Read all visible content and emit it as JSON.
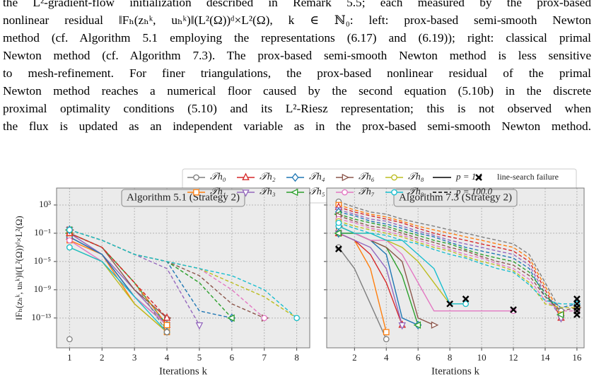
{
  "text": {
    "lines": [
      "the L²-gradient-flow initialization described in Remark 5.5; each measured by the prox-based",
      "nonlinear residual ‖Fₕ(zₕᵏ, uₕᵏ)‖(L²(Ω))ᵈ×L²(Ω), k ∈ ℕ₀: left: prox-based semi-smooth Newton",
      "method (cf. Algorithm 5.1 employing the representations (6.17) and (6.19)); right: classical primal",
      "Newton method (cf. Algorithm 7.3). The prox-based semi-smooth Newton method is less sensitive",
      "to mesh-refinement. For finer triangulations, the prox-based nonlinear residual of the primal",
      "Newton method reaches a numerical floor caused by the second equation (5.10b) in the discrete",
      "proximal optimality conditions (5.10) and its L²-Riesz representation; this is not observed when",
      "the flux is updated as an independent variable as in the prox-based semi-smooth Newton method."
    ]
  },
  "chart_data": [
    {
      "type": "line",
      "title": "Algorithm 5.1 (Strategy 2)",
      "xlabel": "Iterations k",
      "ylabel": "‖Fₕ(zₕᵏ, uₕᵏ)‖(L²(Ω))ᵈ×L²(Ω)",
      "yscale": "log",
      "grid": true,
      "xlim": [
        0.6,
        8.4
      ],
      "ylim": [
        6e-18,
        250000.0
      ],
      "xticks": [
        1,
        2,
        3,
        4,
        5,
        6,
        7,
        8
      ],
      "yticks": [
        {
          "value": 1000,
          "label": "10³"
        },
        {
          "value": 0.1,
          "label": "10⁻¹"
        },
        {
          "value": 1e-05,
          "label": "10⁻⁵"
        },
        {
          "value": 1e-09,
          "label": "10⁻⁹"
        },
        {
          "value": 1e-13,
          "label": "10⁻¹³"
        }
      ],
      "x": [
        1,
        2,
        3,
        4,
        5,
        6,
        7,
        8
      ],
      "series": [
        {
          "name": "𝒯h₀",
          "p": "p = 1.1",
          "line_style": "solid",
          "color": "#7f7f7f",
          "marker": "circle",
          "values": [
            1e-16,
            null,
            null,
            null,
            null,
            null,
            null,
            null
          ]
        },
        {
          "name": "𝒯h₁",
          "p": "p = 1.1",
          "line_style": "solid",
          "color": "#ff7f0e",
          "marker": "square",
          "values": [
            0.01,
            0.0001,
            1e-11,
            1e-15,
            null,
            null,
            null,
            null
          ]
        },
        {
          "name": "𝒯h₂",
          "p": "p = 1.1",
          "line_style": "solid",
          "color": "#d62728",
          "marker": "triangle-up",
          "values": [
            0.03,
            0.0001,
            1e-10,
            1e-14,
            null,
            null,
            null,
            null
          ]
        },
        {
          "name": "𝒯h₃",
          "p": "p = 1.1",
          "line_style": "solid",
          "color": "#9467bd",
          "marker": "triangle-down",
          "values": [
            0.1,
            0.0001,
            1e-09,
            1e-14,
            null,
            null,
            null,
            null
          ]
        },
        {
          "name": "𝒯h₄",
          "p": "p = 1.1",
          "line_style": "solid",
          "color": "#1f77b4",
          "marker": "diamond",
          "values": [
            0.03,
            0.0001,
            1e-10,
            1e-14,
            null,
            null,
            null,
            null
          ]
        },
        {
          "name": "𝒯h₅",
          "p": "p = 1.1",
          "line_style": "solid",
          "color": "#2ca02c",
          "marker": "triangle-left",
          "values": [
            0.1,
            0.001,
            1e-08,
            1e-14,
            null,
            null,
            null,
            null
          ]
        },
        {
          "name": "𝒯h₆",
          "p": "p = 1.1",
          "line_style": "solid",
          "color": "#8c564b",
          "marker": "triangle-right",
          "values": [
            0.1,
            0.001,
            1e-09,
            1e-13,
            null,
            null,
            null,
            null
          ]
        },
        {
          "name": "𝒯h₇",
          "p": "p = 1.1",
          "line_style": "solid",
          "color": "#e377c2",
          "marker": "circle",
          "values": [
            0.01,
            1e-05,
            1e-10,
            1e-14,
            null,
            null,
            null,
            null
          ]
        },
        {
          "name": "𝒯h₈",
          "p": "p = 1.1",
          "line_style": "solid",
          "color": "#bcbd22",
          "marker": "circle",
          "values": [
            0.001,
            1e-05,
            1e-11,
            1e-15,
            null,
            null,
            null,
            null
          ]
        },
        {
          "name": "𝒯h₉",
          "p": "p = 1.1",
          "line_style": "solid",
          "color": "#17becf",
          "marker": "circle",
          "values": [
            0.001,
            1e-05,
            1e-10,
            1e-15,
            null,
            null,
            null,
            null
          ]
        },
        {
          "name": "𝒯h₀",
          "p": "p = 100.0",
          "line_style": "dashed",
          "color": "#7f7f7f",
          "marker": "circle",
          "values": [
            0.1,
            0.001,
            1e-08,
            1e-15,
            null,
            null,
            null,
            null
          ]
        },
        {
          "name": "𝒯h₁",
          "p": "p = 100.0",
          "line_style": "dashed",
          "color": "#ff7f0e",
          "marker": "square",
          "values": [
            0.1,
            0.001,
            1e-08,
            1e-14,
            null,
            null,
            null,
            null
          ]
        },
        {
          "name": "𝒯h₂",
          "p": "p = 100.0",
          "line_style": "dashed",
          "color": "#d62728",
          "marker": "triangle-up",
          "values": [
            0.1,
            0.001,
            1e-08,
            1e-13,
            null,
            null,
            null,
            null
          ]
        },
        {
          "name": "𝒯h₃",
          "p": "p = 100.0",
          "line_style": "dashed",
          "color": "#9467bd",
          "marker": "triangle-down",
          "values": [
            0.3,
            0.01,
            0.0001,
            1e-06,
            1e-14,
            null,
            null,
            null
          ]
        },
        {
          "name": "𝒯h₄",
          "p": "p = 100.0",
          "line_style": "dashed",
          "color": "#1f77b4",
          "marker": "diamond",
          "values": [
            0.3,
            0.01,
            0.0001,
            1e-05,
            1e-12,
            1e-13,
            null,
            null
          ]
        },
        {
          "name": "𝒯h₅",
          "p": "p = 100.0",
          "line_style": "dashed",
          "color": "#2ca02c",
          "marker": "triangle-left",
          "values": [
            0.3,
            0.01,
            0.0001,
            1e-05,
            1e-08,
            1e-13,
            null,
            null
          ]
        },
        {
          "name": "𝒯h₆",
          "p": "p = 100.0",
          "line_style": "dashed",
          "color": "#8c564b",
          "marker": "triangle-right",
          "values": [
            0.3,
            0.01,
            0.0001,
            1e-05,
            1e-07,
            1e-11,
            1e-13,
            null
          ]
        },
        {
          "name": "𝒯h₇",
          "p": "p = 100.0",
          "line_style": "dashed",
          "color": "#e377c2",
          "marker": "circle",
          "values": [
            0.3,
            0.01,
            0.0001,
            1e-05,
            1e-06,
            1e-09,
            1e-13,
            null
          ]
        },
        {
          "name": "𝒯h₈",
          "p": "p = 100.0",
          "line_style": "dashed",
          "color": "#bcbd22",
          "marker": "circle",
          "values": [
            0.3,
            0.01,
            0.0001,
            1e-05,
            1e-06,
            1e-08,
            1e-10,
            1e-13
          ]
        },
        {
          "name": "𝒯h₉",
          "p": "p = 100.0",
          "line_style": "dashed",
          "color": "#17becf",
          "marker": "circle",
          "values": [
            0.3,
            0.01,
            0.0001,
            1e-05,
            1e-06,
            1e-07,
            1e-09,
            1e-13
          ]
        }
      ]
    },
    {
      "type": "line",
      "title": "Algorithm 7.3 (Strategy 2)",
      "xlabel": "Iterations k",
      "yscale": "log",
      "grid": true,
      "xlim": [
        0.25,
        16.45
      ],
      "ylim": [
        6e-18,
        250000.0
      ],
      "xticks": [
        2,
        4,
        6,
        8,
        10,
        12,
        14,
        16
      ],
      "yticks": [
        1000,
        0.1,
        1e-05,
        1e-09,
        1e-13
      ],
      "x": [
        1,
        2,
        3,
        4,
        5,
        6,
        7,
        8,
        9,
        10,
        11,
        12,
        13,
        14,
        15,
        16
      ],
      "series": [
        {
          "name": "𝒯h₀",
          "p": "p = 1.1",
          "line_style": "solid",
          "color": "#7f7f7f",
          "marker": "circle",
          "values": [
            0.001,
            1e-06,
            1e-11,
            1e-16,
            null,
            null,
            null,
            null,
            null,
            null,
            null,
            null,
            null,
            null,
            null,
            null
          ]
        },
        {
          "name": "𝒯h₁",
          "p": "p = 1.1",
          "line_style": "solid",
          "color": "#ff7f0e",
          "marker": "square",
          "values": [
            0.1,
            0.01,
            1e-06,
            1e-15,
            null,
            null,
            null,
            null,
            null,
            null,
            null,
            null,
            null,
            null,
            null,
            null
          ]
        },
        {
          "name": "𝒯h₂",
          "p": "p = 1.1",
          "line_style": "solid",
          "color": "#d62728",
          "marker": "triangle-up",
          "values": [
            0.1,
            0.01,
            0.0001,
            1e-08,
            1e-14,
            null,
            null,
            null,
            null,
            null,
            null,
            null,
            null,
            null,
            null,
            null
          ]
        },
        {
          "name": "𝒯h₃",
          "p": "p = 1.1",
          "line_style": "solid",
          "color": "#9467bd",
          "marker": "triangle-down",
          "values": [
            0.1,
            0.01,
            0.001,
            1e-06,
            1e-14,
            null,
            null,
            null,
            null,
            null,
            null,
            null,
            null,
            null,
            null,
            null
          ]
        },
        {
          "name": "𝒯h₄",
          "p": "p = 1.1",
          "line_style": "solid",
          "color": "#1f77b4",
          "marker": "diamond",
          "values": [
            0.1,
            0.1,
            0.01,
            0.0001,
            1e-13,
            1e-14,
            null,
            null,
            null,
            null,
            null,
            null,
            null,
            null,
            null,
            null
          ]
        },
        {
          "name": "𝒯h₅",
          "p": "p = 1.1",
          "line_style": "solid",
          "color": "#2ca02c",
          "marker": "triangle-left",
          "values": [
            0.1,
            0.1,
            0.01,
            0.001,
            1e-07,
            1e-14,
            null,
            null,
            null,
            null,
            null,
            null,
            null,
            null,
            null,
            null
          ]
        },
        {
          "name": "𝒯h₆",
          "p": "p = 1.1",
          "line_style": "solid",
          "color": "#8c564b",
          "marker": "triangle-right",
          "values": [
            1,
            0.1,
            0.01,
            0.001,
            1e-05,
            1e-13,
            1e-14,
            null,
            null,
            null,
            null,
            null,
            null,
            null,
            null,
            null
          ]
        },
        {
          "name": "𝒯h₇",
          "p": "p = 1.1",
          "line_style": "solid",
          "color": "#e377c2",
          "marker": "circle",
          "values": [
            1,
            0.1,
            0.01,
            0.01,
            0.0001,
            1e-08,
            1e-12,
            1e-12,
            1e-12,
            1e-12,
            1e-12,
            1e-12,
            null,
            null,
            null,
            null
          ]
        },
        {
          "name": "𝒯h₈",
          "p": "p = 1.1",
          "line_style": "solid",
          "color": "#bcbd22",
          "marker": "circle",
          "values": [
            1,
            0.1,
            0.1,
            0.01,
            0.001,
            1e-05,
            1e-08,
            1e-11,
            1e-11,
            null,
            null,
            null,
            null,
            null,
            null,
            null
          ]
        },
        {
          "name": "𝒯h₉",
          "p": "p = 1.1",
          "line_style": "solid",
          "color": "#17becf",
          "marker": "circle",
          "values": [
            1,
            0.1,
            0.1,
            0.01,
            0.01,
            0.0001,
            1e-06,
            1e-11,
            1e-11,
            null,
            null,
            null,
            null,
            null,
            null,
            null
          ]
        },
        {
          "name": "𝒯h₀",
          "p": "p = 100.0",
          "line_style": "dashed",
          "color": "#7f7f7f",
          "marker": "circle",
          "values": [
            3000.0,
            500.0,
            100.0,
            50.0,
            10.0,
            3,
            1,
            0.3,
            0.1,
            0.03,
            0.01,
            0.003,
            0.0001,
            1e-08,
            1e-12,
            null
          ]
        },
        {
          "name": "𝒯h₁",
          "p": "p = 100.0",
          "line_style": "dashed",
          "color": "#ff7f0e",
          "marker": "square",
          "values": [
            1000.0,
            200.0,
            50.0,
            20.0,
            5,
            1,
            0.3,
            0.1,
            0.03,
            0.01,
            0.003,
            0.001,
            3e-05,
            3e-09,
            3e-13,
            null
          ]
        },
        {
          "name": "𝒯h₂",
          "p": "p = 100.0",
          "line_style": "dashed",
          "color": "#d62728",
          "marker": "triangle-up",
          "values": [
            500.0,
            100.0,
            30.0,
            10.0,
            3,
            0.5,
            0.1,
            0.03,
            0.01,
            0.003,
            0.001,
            0.0003,
            1e-05,
            1e-09,
            1e-13,
            null
          ]
        },
        {
          "name": "𝒯h₃",
          "p": "p = 100.0",
          "line_style": "dashed",
          "color": "#9467bd",
          "marker": "triangle-down",
          "values": [
            200.0,
            50.0,
            10.0,
            5,
            1,
            0.2,
            0.05,
            0.01,
            0.003,
            0.001,
            0.0003,
            0.0001,
            3e-06,
            3e-10,
            1e-13,
            null
          ]
        },
        {
          "name": "𝒯h₄",
          "p": "p = 100.0",
          "line_style": "dashed",
          "color": "#1f77b4",
          "marker": "diamond",
          "values": [
            100.0,
            30.0,
            5,
            2,
            0.5,
            0.1,
            0.03,
            0.005,
            0.001,
            0.0003,
            0.0001,
            3e-05,
            1e-06,
            1e-10,
            3e-12,
            1e-11
          ]
        },
        {
          "name": "𝒯h₅",
          "p": "p = 100.0",
          "line_style": "dashed",
          "color": "#2ca02c",
          "marker": "triangle-left",
          "values": [
            50.0,
            10.0,
            3,
            1,
            0.2,
            0.05,
            0.01,
            0.003,
            0.0005,
            0.0001,
            3e-05,
            1e-05,
            3e-07,
            3e-10,
            3e-13,
            null
          ]
        },
        {
          "name": "𝒯h₆",
          "p": "p = 100.0",
          "line_style": "dashed",
          "color": "#8c564b",
          "marker": "triangle-right",
          "values": [
            30.0,
            5,
            1,
            0.5,
            0.1,
            0.02,
            0.005,
            0.001,
            0.0003,
            5e-05,
            1e-05,
            3e-06,
            1e-07,
            1e-10,
            1e-12,
            3e-12
          ]
        },
        {
          "name": "𝒯h₇",
          "p": "p = 100.0",
          "line_style": "dashed",
          "color": "#e377c2",
          "marker": "circle",
          "values": [
            10.0,
            3,
            0.5,
            0.2,
            0.05,
            0.01,
            0.002,
            0.0005,
            0.0001,
            3e-05,
            5e-06,
            1e-06,
            3e-08,
            3e-11,
            1e-12,
            1e-12
          ]
        },
        {
          "name": "𝒯h₈",
          "p": "p = 100.0",
          "line_style": "dashed",
          "color": "#bcbd22",
          "marker": "circle",
          "values": [
            5,
            1,
            0.3,
            0.1,
            0.03,
            0.005,
            0.001,
            0.0003,
            5e-05,
            1e-05,
            3e-06,
            5e-07,
            1e-08,
            1e-11,
            3e-12,
            3e-12
          ]
        },
        {
          "name": "𝒯h₉",
          "p": "p = 100.0",
          "line_style": "dashed",
          "color": "#17becf",
          "marker": "circle",
          "values": [
            3,
            0.5,
            0.1,
            0.05,
            0.01,
            0.003,
            0.0005,
            0.0001,
            3e-05,
            5e-06,
            1e-06,
            3e-07,
            5e-09,
            3e-11,
            1e-11,
            1e-11
          ]
        }
      ],
      "failures": {
        "name": "line-search failure",
        "x": [
          1,
          8,
          9,
          12,
          16,
          16,
          16,
          16,
          16
        ],
        "y": [
          0.0006,
          1e-11,
          5e-11,
          1.5e-12,
          5e-11,
          1e-11,
          3e-12,
          1e-12,
          3e-13
        ]
      }
    }
  ]
}
